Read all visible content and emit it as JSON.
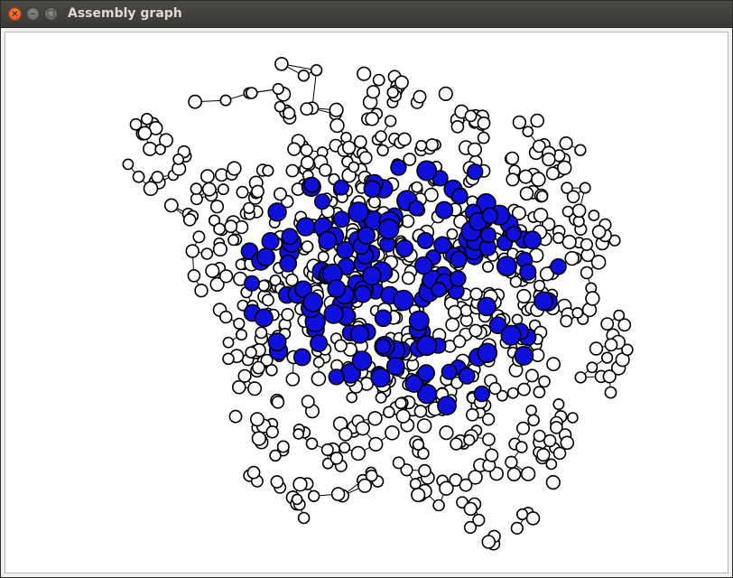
{
  "window": {
    "title": "Assembly graph",
    "close_glyph": "×",
    "minimize_glyph": "–",
    "maximize_glyph": "□",
    "close_icon": "close-icon",
    "minimize_icon": "minimize-icon",
    "maximize_icon": "maximize-icon"
  },
  "graph": {
    "node_fill_colors": {
      "default": "#ffffff",
      "highlighted": "#1010dd"
    },
    "node_stroke_color": "#000000",
    "edge_color": "#000000",
    "background": "#ffffff"
  }
}
